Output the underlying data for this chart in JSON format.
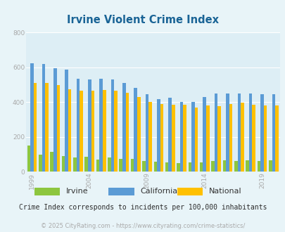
{
  "title": "Irvine Violent Crime Index",
  "years": [
    1999,
    2000,
    2001,
    2002,
    2003,
    2004,
    2005,
    2006,
    2007,
    2008,
    2009,
    2010,
    2011,
    2012,
    2013,
    2014,
    2015,
    2016,
    2017,
    2018,
    2019,
    2020
  ],
  "irvine": [
    152,
    98,
    112,
    88,
    82,
    85,
    68,
    80,
    75,
    75,
    60,
    58,
    55,
    50,
    52,
    55,
    60,
    65,
    60,
    65,
    60,
    65
  ],
  "california": [
    622,
    620,
    595,
    585,
    535,
    530,
    535,
    530,
    510,
    480,
    445,
    415,
    425,
    400,
    400,
    430,
    450,
    450,
    450,
    450,
    445,
    445
  ],
  "national": [
    510,
    508,
    498,
    475,
    465,
    465,
    470,
    465,
    455,
    430,
    400,
    390,
    385,
    385,
    370,
    380,
    375,
    390,
    395,
    385,
    380,
    380
  ],
  "irvine_color": "#8dc63f",
  "california_color": "#5b9bd5",
  "national_color": "#ffc000",
  "fig_bg_color": "#e8f4f8",
  "plot_bg_color": "#ddeef5",
  "ylim": [
    0,
    800
  ],
  "yticks": [
    0,
    200,
    400,
    600,
    800
  ],
  "xlabel_ticks": [
    1999,
    2004,
    2009,
    2014,
    2019
  ],
  "subtitle": "Crime Index corresponds to incidents per 100,000 inhabitants",
  "footer": "© 2025 CityRating.com - https://www.cityrating.com/crime-statistics/",
  "title_color": "#1a6496",
  "subtitle_color": "#2c2c2c",
  "footer_color": "#aaaaaa",
  "tick_color": "#aaaaaa",
  "legend_labels": [
    "Irvine",
    "California",
    "National"
  ],
  "bar_width": 0.28
}
